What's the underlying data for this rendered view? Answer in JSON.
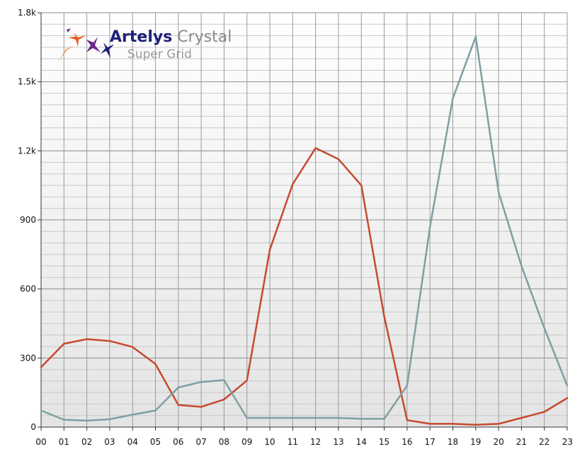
{
  "logo": {
    "brand": "Artelys",
    "product": "Crystal",
    "subtitle": "Super Grid",
    "colors": [
      "#f07d1c",
      "#e8541e",
      "#6a2a8c",
      "#1f1f7a"
    ]
  },
  "chart_data": {
    "type": "line",
    "title": "",
    "xlabel": "",
    "ylabel": "",
    "categories": [
      "00",
      "01",
      "02",
      "03",
      "04",
      "05",
      "06",
      "07",
      "08",
      "09",
      "10",
      "11",
      "12",
      "13",
      "14",
      "15",
      "16",
      "17",
      "18",
      "19",
      "20",
      "21",
      "22",
      "23"
    ],
    "ylim": [
      0,
      1800
    ],
    "yticks": [
      0,
      300,
      600,
      900,
      1200,
      1500,
      1800
    ],
    "ytick_labels": [
      "0",
      "300",
      "600",
      "900",
      "1.2k",
      "1.5k",
      "1.8k"
    ],
    "grid": true,
    "series": [
      {
        "color": "#c64a2e",
        "values": [
          260,
          362,
          382,
          374,
          348,
          274,
          96,
          88,
          120,
          202,
          770,
          1055,
          1212,
          1164,
          1050,
          480,
          30,
          14,
          14,
          10,
          14,
          40,
          66,
          126
        ]
      },
      {
        "color": "#7f9fa3",
        "values": [
          72,
          32,
          28,
          34,
          54,
          72,
          172,
          196,
          204,
          40,
          40,
          40,
          40,
          40,
          36,
          36,
          180,
          870,
          1428,
          1696,
          1020,
          700,
          430,
          180
        ]
      }
    ]
  }
}
